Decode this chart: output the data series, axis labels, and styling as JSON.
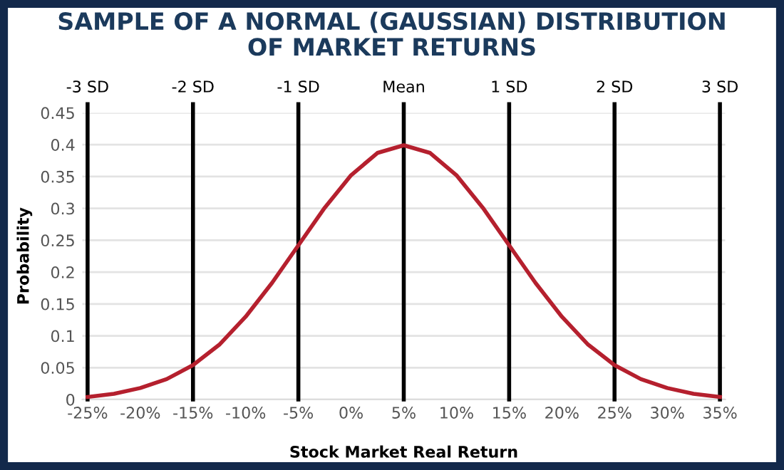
{
  "chart_data": {
    "type": "line",
    "title": "SAMPLE OF A NORMAL (GAUSSIAN) DISTRIBUTION\nOF MARKET RETURNS",
    "xlabel": "Stock Market Real Return",
    "ylabel": "Probability",
    "x": [
      -25,
      -22.5,
      -20,
      -17.5,
      -15,
      -12.5,
      -10,
      -7.5,
      -5,
      -2.5,
      0,
      2.5,
      5,
      7.5,
      10,
      12.5,
      15,
      17.5,
      20,
      22.5,
      25,
      27.5,
      30,
      32.5,
      35
    ],
    "series": [
      {
        "color": "#b5202e",
        "values": [
          0.004,
          0.009,
          0.018,
          0.032,
          0.054,
          0.086,
          0.13,
          0.183,
          0.242,
          0.301,
          0.352,
          0.387,
          0.399,
          0.387,
          0.352,
          0.301,
          0.242,
          0.183,
          0.13,
          0.086,
          0.054,
          0.032,
          0.018,
          0.009,
          0.004
        ]
      }
    ],
    "xlim": [
      -25.5,
      35.5
    ],
    "ylim": [
      0,
      0.45
    ],
    "xticks": [
      {
        "value": -25,
        "label": "-25%"
      },
      {
        "value": -20,
        "label": "-20%"
      },
      {
        "value": -15,
        "label": "-15%"
      },
      {
        "value": -10,
        "label": "-10%"
      },
      {
        "value": -5,
        "label": "-5%"
      },
      {
        "value": 0,
        "label": "0%"
      },
      {
        "value": 5,
        "label": "5%"
      },
      {
        "value": 10,
        "label": "10%"
      },
      {
        "value": 15,
        "label": "15%"
      },
      {
        "value": 20,
        "label": "20%"
      },
      {
        "value": 25,
        "label": "25%"
      },
      {
        "value": 30,
        "label": "30%"
      },
      {
        "value": 35,
        "label": "35%"
      }
    ],
    "yticks": [
      0,
      0.05,
      0.1,
      0.15,
      0.2,
      0.25,
      0.3,
      0.35,
      0.4,
      0.45
    ],
    "ref_lines": [
      {
        "axis": "x",
        "value": -25,
        "label": "-3 SD",
        "color": "#000000"
      },
      {
        "axis": "x",
        "value": -15,
        "label": "-2 SD",
        "color": "#000000"
      },
      {
        "axis": "x",
        "value": -5,
        "label": "-1 SD",
        "color": "#000000"
      },
      {
        "axis": "x",
        "value": 5,
        "label": "Mean",
        "color": "#000000"
      },
      {
        "axis": "x",
        "value": 15,
        "label": "1 SD",
        "color": "#000000"
      },
      {
        "axis": "x",
        "value": 25,
        "label": "2 SD",
        "color": "#000000"
      },
      {
        "axis": "x",
        "value": 35,
        "label": "3 SD",
        "color": "#000000"
      }
    ],
    "grid": "y",
    "line_style": "solid",
    "marker": "none",
    "legend": false
  }
}
